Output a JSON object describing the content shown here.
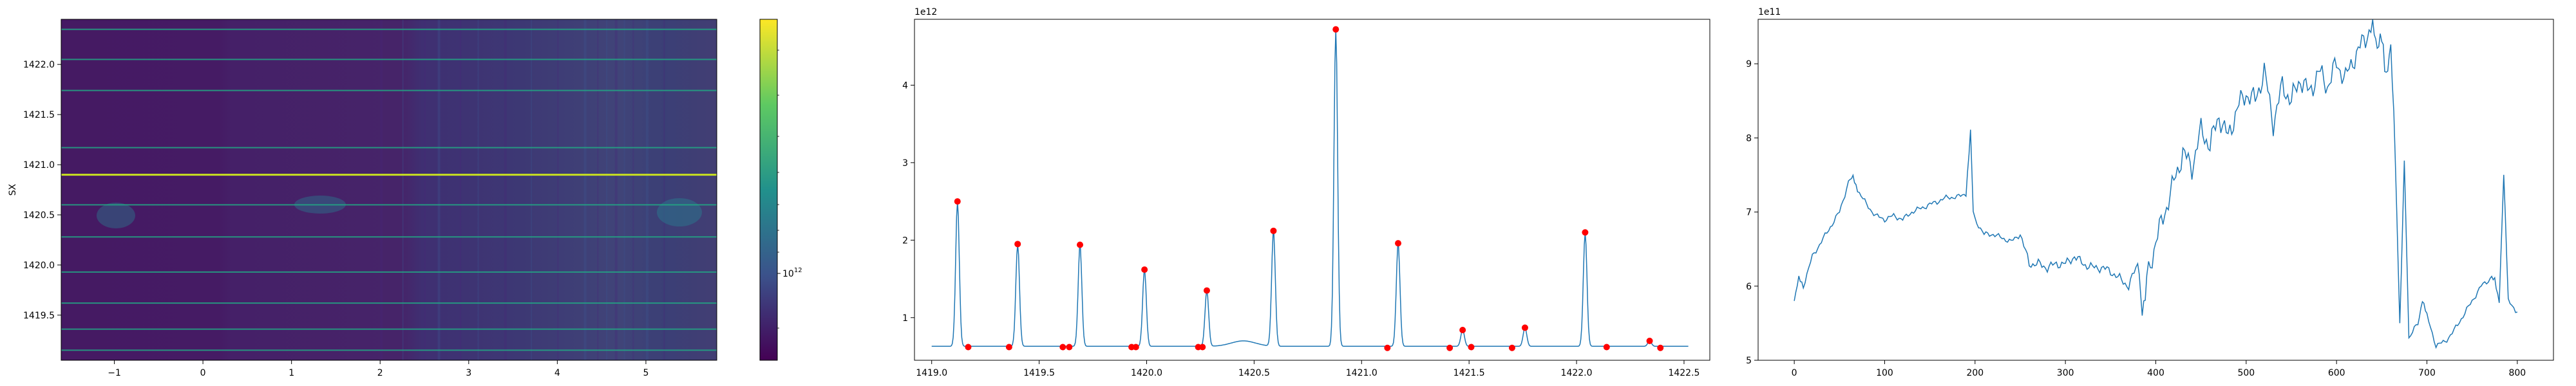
{
  "chart_data": [
    {
      "type": "heatmap",
      "ylabel": "SX",
      "xlabel": "",
      "xlim": [
        -1.6,
        5.8
      ],
      "ylim": [
        1419.05,
        1422.45
      ],
      "x_ticks": [
        -1,
        0,
        1,
        2,
        3,
        4,
        5
      ],
      "y_ticks": [
        1419.5,
        1420.0,
        1420.5,
        1421.0,
        1421.5,
        1422.0
      ],
      "y_tick_labels": [
        "1419.5",
        "1420.0",
        "1420.5",
        "1421.0",
        "1421.5",
        "1422.0"
      ],
      "colormap": "viridis",
      "colorbar": {
        "scale": "log",
        "tick_label": "10¹²",
        "tick_base": "10",
        "tick_exp": "12"
      },
      "bright_rows_y": [
        1419.15,
        1419.36,
        1419.62,
        1419.93,
        1420.28,
        1420.6,
        1420.9,
        1421.17,
        1421.74,
        1422.05,
        1422.35
      ],
      "brightest_row_y": 1420.9
    },
    {
      "type": "line",
      "offset_text": "1e12",
      "xlim": [
        1418.92,
        1422.62
      ],
      "ylim": [
        0.45,
        4.85
      ],
      "x_ticks": [
        1419.0,
        1419.5,
        1420.0,
        1420.5,
        1421.0,
        1421.5,
        1422.0,
        1422.5
      ],
      "x_tick_labels": [
        "1419.0",
        "1419.5",
        "1420.0",
        "1420.5",
        "1421.0",
        "1421.5",
        "1422.0",
        "1422.5"
      ],
      "y_ticks": [
        1,
        2,
        3,
        4
      ],
      "series": [
        {
          "color": "#1f77b4",
          "baseline": 0.63,
          "x_range": [
            1419.0,
            1422.52
          ],
          "peaks": [
            {
              "x": 1419.12,
              "y": 2.5
            },
            {
              "x": 1419.4,
              "y": 1.95
            },
            {
              "x": 1419.69,
              "y": 1.94
            },
            {
              "x": 1419.99,
              "y": 1.62
            },
            {
              "x": 1420.28,
              "y": 1.35
            },
            {
              "x": 1420.59,
              "y": 2.12
            },
            {
              "x": 1420.88,
              "y": 4.72
            },
            {
              "x": 1421.17,
              "y": 1.96
            },
            {
              "x": 1421.47,
              "y": 0.84
            },
            {
              "x": 1421.76,
              "y": 0.87
            },
            {
              "x": 1422.04,
              "y": 2.1
            },
            {
              "x": 1422.34,
              "y": 0.7
            }
          ]
        },
        {
          "type": "scatter",
          "color": "#ff0000",
          "x": [
            1419.12,
            1419.17,
            1419.36,
            1419.4,
            1419.61,
            1419.64,
            1419.69,
            1419.93,
            1419.95,
            1419.99,
            1420.24,
            1420.26,
            1420.28,
            1420.59,
            1420.88,
            1421.12,
            1421.17,
            1421.41,
            1421.47,
            1421.51,
            1421.7,
            1421.76,
            1422.04,
            1422.14,
            1422.34,
            1422.39
          ],
          "y": [
            2.5,
            0.62,
            0.62,
            1.95,
            0.62,
            0.62,
            1.94,
            0.62,
            0.62,
            1.62,
            0.62,
            0.62,
            1.35,
            2.12,
            4.72,
            0.61,
            1.96,
            0.61,
            0.84,
            0.62,
            0.61,
            0.87,
            2.1,
            0.62,
            0.7,
            0.61
          ]
        }
      ]
    },
    {
      "type": "line",
      "offset_text": "1e11",
      "xlim": [
        -40,
        840
      ],
      "ylim": [
        5.0,
        9.6
      ],
      "x_ticks": [
        0,
        100,
        200,
        300,
        400,
        500,
        600,
        700,
        800
      ],
      "y_ticks": [
        5,
        6,
        7,
        8,
        9
      ],
      "series": [
        {
          "color": "#1f77b4",
          "x": [
            0,
            5,
            10,
            20,
            30,
            40,
            50,
            60,
            65,
            70,
            80,
            90,
            100,
            110,
            120,
            130,
            140,
            150,
            160,
            170,
            180,
            190,
            195,
            198,
            200,
            210,
            220,
            230,
            240,
            250,
            260,
            270,
            280,
            290,
            300,
            310,
            320,
            330,
            340,
            350,
            360,
            370,
            380,
            385,
            390,
            400,
            410,
            420,
            430,
            440,
            450,
            460,
            470,
            480,
            490,
            500,
            510,
            520,
            530,
            540,
            550,
            560,
            570,
            580,
            590,
            600,
            610,
            620,
            630,
            640,
            645,
            650,
            655,
            660,
            665,
            670,
            675,
            680,
            690,
            695,
            700,
            710,
            720,
            730,
            740,
            750,
            760,
            770,
            775,
            780,
            785,
            790,
            800
          ],
          "y": [
            5.8,
            6.1,
            6.0,
            6.4,
            6.6,
            6.8,
            7.0,
            7.4,
            7.5,
            7.3,
            7.1,
            6.95,
            6.9,
            6.95,
            6.9,
            7.0,
            7.05,
            7.1,
            7.15,
            7.2,
            7.2,
            7.25,
            8.1,
            7.0,
            6.9,
            6.7,
            6.7,
            6.65,
            6.6,
            6.7,
            6.3,
            6.3,
            6.25,
            6.3,
            6.3,
            6.4,
            6.3,
            6.25,
            6.25,
            6.2,
            6.1,
            6.0,
            6.3,
            5.7,
            6.1,
            6.6,
            7.0,
            7.4,
            7.8,
            7.6,
            8.1,
            7.9,
            8.3,
            8.0,
            8.4,
            8.6,
            8.5,
            8.9,
            8.2,
            8.7,
            8.5,
            8.8,
            8.6,
            8.9,
            8.7,
            9.0,
            8.8,
            9.1,
            9.3,
            9.55,
            9.1,
            9.4,
            8.9,
            9.2,
            7.7,
            5.5,
            7.7,
            5.3,
            5.5,
            5.8,
            5.6,
            5.2,
            5.25,
            5.4,
            5.6,
            5.8,
            6.0,
            6.1,
            6.1,
            5.8,
            7.5,
            5.8,
            5.65
          ]
        }
      ]
    }
  ]
}
